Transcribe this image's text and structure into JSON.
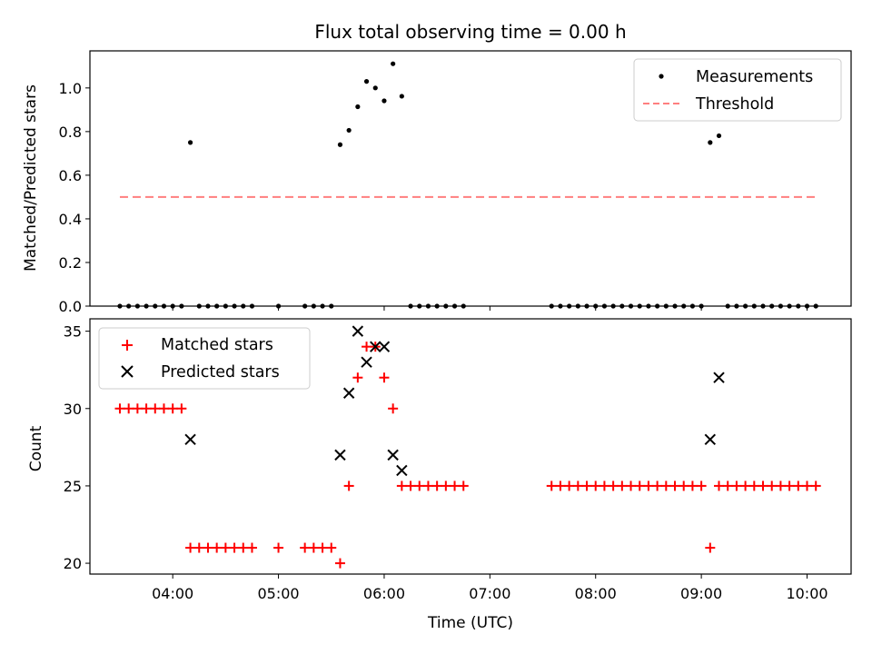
{
  "chart_data": [
    {
      "type": "scatter",
      "title": "Flux total observing time = 0.00 h",
      "ylabel": "Matched/Predicted stars",
      "ylim": [
        0,
        1.17
      ],
      "yticks": [
        "0.0",
        "0.2",
        "0.4",
        "0.6",
        "0.8",
        "1.0"
      ],
      "legend_position": "top-right",
      "series": [
        {
          "name": "Measurements",
          "color": "#000000",
          "marker": "dot",
          "points": [
            [
              "03:30",
              0
            ],
            [
              "03:35",
              0
            ],
            [
              "03:40",
              0
            ],
            [
              "03:45",
              0
            ],
            [
              "03:50",
              0
            ],
            [
              "03:55",
              0
            ],
            [
              "04:00",
              0
            ],
            [
              "04:05",
              0
            ],
            [
              "04:10",
              0.75
            ],
            [
              "04:15",
              0
            ],
            [
              "04:20",
              0
            ],
            [
              "04:25",
              0
            ],
            [
              "04:30",
              0
            ],
            [
              "04:35",
              0
            ],
            [
              "04:40",
              0
            ],
            [
              "04:45",
              0
            ],
            [
              "05:00",
              0
            ],
            [
              "05:15",
              0
            ],
            [
              "05:20",
              0
            ],
            [
              "05:25",
              0
            ],
            [
              "05:30",
              0
            ],
            [
              "05:35",
              0.74
            ],
            [
              "05:40",
              0.806
            ],
            [
              "05:45",
              0.914
            ],
            [
              "05:50",
              1.03
            ],
            [
              "05:55",
              1.0
            ],
            [
              "06:00",
              0.941
            ],
            [
              "06:05",
              1.111
            ],
            [
              "06:10",
              0.962
            ],
            [
              "06:15",
              0
            ],
            [
              "06:20",
              0
            ],
            [
              "06:25",
              0
            ],
            [
              "06:30",
              0
            ],
            [
              "06:35",
              0
            ],
            [
              "06:40",
              0
            ],
            [
              "06:45",
              0
            ],
            [
              "07:35",
              0
            ],
            [
              "07:40",
              0
            ],
            [
              "07:45",
              0
            ],
            [
              "07:50",
              0
            ],
            [
              "07:55",
              0
            ],
            [
              "08:00",
              0
            ],
            [
              "08:05",
              0
            ],
            [
              "08:10",
              0
            ],
            [
              "08:15",
              0
            ],
            [
              "08:20",
              0
            ],
            [
              "08:25",
              0
            ],
            [
              "08:30",
              0
            ],
            [
              "08:35",
              0
            ],
            [
              "08:40",
              0
            ],
            [
              "08:45",
              0
            ],
            [
              "08:50",
              0
            ],
            [
              "08:55",
              0
            ],
            [
              "09:00",
              0
            ],
            [
              "09:05",
              0.75
            ],
            [
              "09:10",
              0.781
            ],
            [
              "09:15",
              0
            ],
            [
              "09:20",
              0
            ],
            [
              "09:25",
              0
            ],
            [
              "09:30",
              0
            ],
            [
              "09:35",
              0
            ],
            [
              "09:40",
              0
            ],
            [
              "09:45",
              0
            ],
            [
              "09:50",
              0
            ],
            [
              "09:55",
              0
            ],
            [
              "10:00",
              0
            ],
            [
              "10:05",
              0
            ]
          ]
        },
        {
          "name": "Threshold",
          "color": "#ff7f7f",
          "marker": "dashed-line",
          "points": [
            [
              "03:30",
              0.5
            ],
            [
              "10:05",
              0.5
            ]
          ]
        }
      ]
    },
    {
      "type": "scatter",
      "xlabel": "Time (UTC)",
      "ylabel": "Count",
      "ylim": [
        19.3,
        35.8
      ],
      "yticks": [
        "20",
        "25",
        "30",
        "35"
      ],
      "xlim": [
        "03:13",
        "10:25"
      ],
      "xticks": [
        "04:00",
        "05:00",
        "06:00",
        "07:00",
        "08:00",
        "09:00",
        "10:00"
      ],
      "legend_position": "top-left",
      "series": [
        {
          "name": "Matched stars",
          "color": "#ff0000",
          "marker": "plus",
          "points": [
            [
              "03:30",
              30
            ],
            [
              "03:35",
              30
            ],
            [
              "03:40",
              30
            ],
            [
              "03:45",
              30
            ],
            [
              "03:50",
              30
            ],
            [
              "03:55",
              30
            ],
            [
              "04:00",
              30
            ],
            [
              "04:05",
              30
            ],
            [
              "04:10",
              21
            ],
            [
              "04:15",
              21
            ],
            [
              "04:20",
              21
            ],
            [
              "04:25",
              21
            ],
            [
              "04:30",
              21
            ],
            [
              "04:35",
              21
            ],
            [
              "04:40",
              21
            ],
            [
              "04:45",
              21
            ],
            [
              "05:00",
              21
            ],
            [
              "05:15",
              21
            ],
            [
              "05:20",
              21
            ],
            [
              "05:25",
              21
            ],
            [
              "05:30",
              21
            ],
            [
              "05:35",
              20
            ],
            [
              "05:40",
              25
            ],
            [
              "05:45",
              32
            ],
            [
              "05:50",
              34
            ],
            [
              "05:55",
              34
            ],
            [
              "06:00",
              32
            ],
            [
              "06:05",
              30
            ],
            [
              "06:10",
              25
            ],
            [
              "06:15",
              25
            ],
            [
              "06:20",
              25
            ],
            [
              "06:25",
              25
            ],
            [
              "06:30",
              25
            ],
            [
              "06:35",
              25
            ],
            [
              "06:40",
              25
            ],
            [
              "06:45",
              25
            ],
            [
              "07:35",
              25
            ],
            [
              "07:40",
              25
            ],
            [
              "07:45",
              25
            ],
            [
              "07:50",
              25
            ],
            [
              "07:55",
              25
            ],
            [
              "08:00",
              25
            ],
            [
              "08:05",
              25
            ],
            [
              "08:10",
              25
            ],
            [
              "08:15",
              25
            ],
            [
              "08:20",
              25
            ],
            [
              "08:25",
              25
            ],
            [
              "08:30",
              25
            ],
            [
              "08:35",
              25
            ],
            [
              "08:40",
              25
            ],
            [
              "08:45",
              25
            ],
            [
              "08:50",
              25
            ],
            [
              "08:55",
              25
            ],
            [
              "09:00",
              25
            ],
            [
              "09:05",
              21
            ],
            [
              "09:10",
              25
            ],
            [
              "09:15",
              25
            ],
            [
              "09:20",
              25
            ],
            [
              "09:25",
              25
            ],
            [
              "09:30",
              25
            ],
            [
              "09:35",
              25
            ],
            [
              "09:40",
              25
            ],
            [
              "09:45",
              25
            ],
            [
              "09:50",
              25
            ],
            [
              "09:55",
              25
            ],
            [
              "10:00",
              25
            ],
            [
              "10:05",
              25
            ]
          ]
        },
        {
          "name": "Predicted stars",
          "color": "#000000",
          "marker": "x",
          "points": [
            [
              "04:10",
              28
            ],
            [
              "05:35",
              27
            ],
            [
              "05:40",
              31
            ],
            [
              "05:45",
              35
            ],
            [
              "05:50",
              33
            ],
            [
              "05:55",
              34
            ],
            [
              "06:00",
              34
            ],
            [
              "06:05",
              27
            ],
            [
              "06:10",
              26
            ],
            [
              "09:05",
              28
            ],
            [
              "09:10",
              32
            ]
          ]
        }
      ]
    }
  ]
}
